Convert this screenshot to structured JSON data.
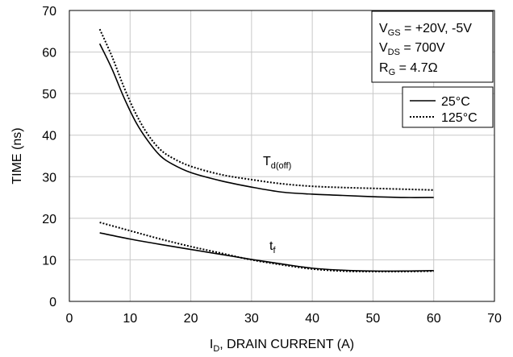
{
  "chart_data": {
    "type": "line",
    "xlabel": {
      "main": "I",
      "sub": "D",
      "rest": ", DRAIN CURRENT (A)"
    },
    "ylabel": "TIME (ns)",
    "xlim": [
      0,
      70
    ],
    "ylim": [
      0,
      70
    ],
    "x_ticks": [
      "0",
      "10",
      "20",
      "30",
      "40",
      "50",
      "60",
      "70"
    ],
    "y_ticks": [
      "0",
      "10",
      "20",
      "30",
      "40",
      "50",
      "60",
      "70"
    ],
    "grid": true,
    "legend_position": "top-right",
    "conditions": [
      {
        "main": "V",
        "sub": "GS",
        "rest": " = +20V, -5V"
      },
      {
        "main": "V",
        "sub": "DS",
        "rest": " = 700V"
      },
      {
        "main": "R",
        "sub": "G",
        "rest": " = 4.7Ω"
      }
    ],
    "legend": [
      {
        "label": "25°C",
        "style": "solid"
      },
      {
        "label": "125°C",
        "style": "dotted"
      }
    ],
    "curve_labels": {
      "td_off": {
        "main": "T",
        "sub": "d(off)"
      },
      "tf": {
        "main": "t",
        "sub": "f"
      }
    },
    "series": [
      {
        "name": "25°C",
        "style": "solid",
        "group": "td_off",
        "x": [
          5,
          7,
          9,
          11,
          13,
          15,
          17,
          20,
          25,
          30,
          35,
          40,
          45,
          50,
          55,
          60
        ],
        "y": [
          62,
          56,
          49,
          43,
          38.5,
          35,
          33,
          31,
          29,
          27.5,
          26.3,
          25.8,
          25.5,
          25.2,
          25,
          25
        ]
      },
      {
        "name": "125°C",
        "style": "dotted",
        "group": "td_off",
        "x": [
          5,
          7,
          9,
          11,
          13,
          15,
          17,
          20,
          25,
          30,
          35,
          40,
          45,
          50,
          55,
          60
        ],
        "y": [
          65.5,
          59,
          51.5,
          45,
          40,
          36.5,
          34.5,
          32.5,
          30.5,
          29.3,
          28.3,
          27.7,
          27.4,
          27.2,
          27,
          26.8
        ]
      },
      {
        "name": "25°C",
        "style": "solid",
        "group": "tf",
        "x": [
          5,
          10,
          15,
          20,
          25,
          30,
          35,
          40,
          45,
          50,
          55,
          60
        ],
        "y": [
          16.5,
          15,
          13.7,
          12.5,
          11.3,
          10.1,
          9,
          8,
          7.5,
          7.3,
          7.3,
          7.4
        ]
      },
      {
        "name": "125°C",
        "style": "dotted",
        "group": "tf",
        "x": [
          5,
          10,
          15,
          20,
          25,
          30,
          35,
          40,
          45,
          50,
          55,
          60
        ],
        "y": [
          19,
          17,
          15,
          13.2,
          11.6,
          10,
          8.8,
          7.8,
          7.3,
          7.2,
          7.2,
          7.3
        ]
      }
    ]
  }
}
